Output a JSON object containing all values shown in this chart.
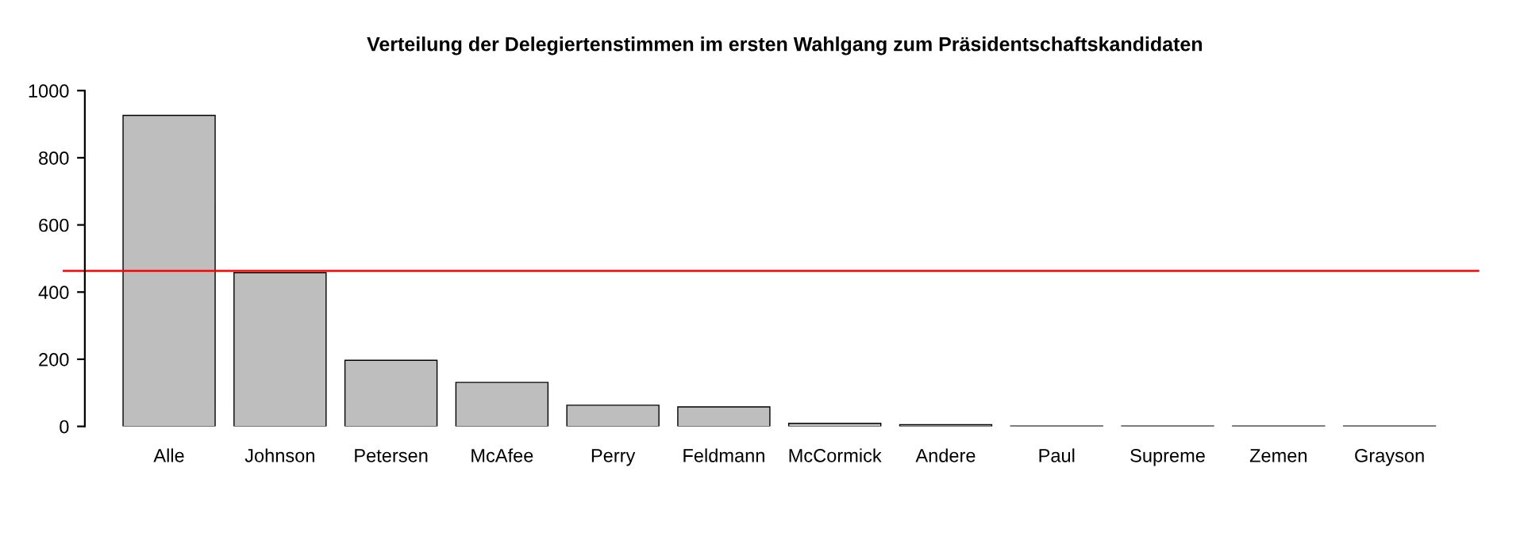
{
  "chart_data": {
    "type": "bar",
    "title": "Verteilung der Delegiertenstimmen im ersten Wahlgang zum Präsidentschaftskandidaten",
    "categories": [
      "Alle",
      "Johnson",
      "Petersen",
      "McAfee",
      "Perry",
      "Feldmann",
      "McCormick",
      "Andere",
      "Paul",
      "Supreme",
      "Zemen",
      "Grayson"
    ],
    "values": [
      926,
      458,
      197,
      131,
      63,
      58,
      9,
      5,
      1,
      1,
      1,
      1
    ],
    "color": "#bebebe",
    "ylim": [
      0,
      1000
    ],
    "yticks": [
      0,
      200,
      400,
      600,
      800,
      1000
    ],
    "ref_lines": [
      {
        "axis": "y",
        "value": 463,
        "color": "#ff0000"
      }
    ],
    "grid": false
  }
}
